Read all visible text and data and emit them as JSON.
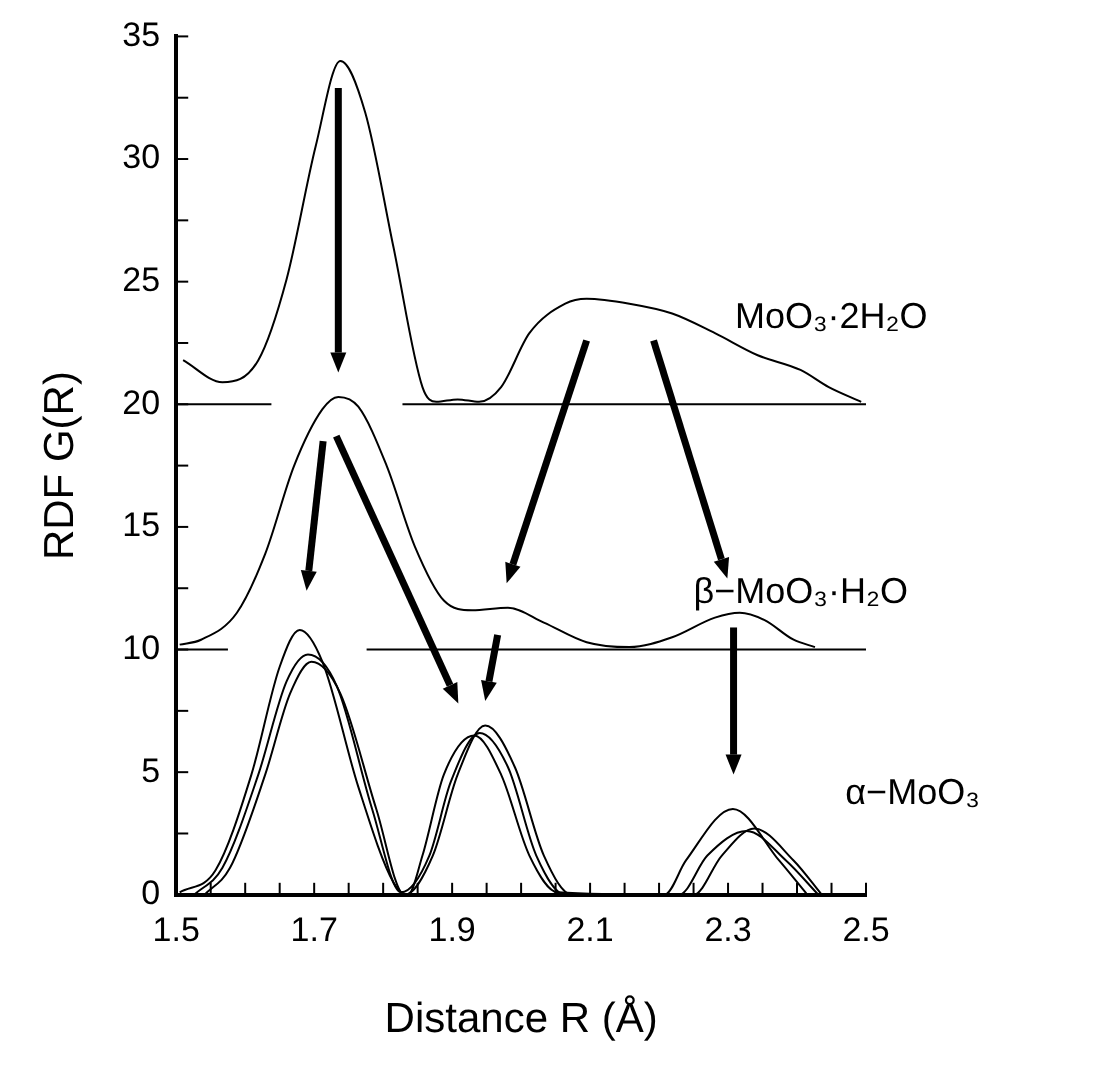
{
  "chart_data": {
    "type": "line",
    "xlabel": "Distance R (Å)",
    "ylabel": "RDF G(R)",
    "xlim": [
      1.5,
      2.5
    ],
    "ylim": [
      0,
      35
    ],
    "xticks": [
      1.5,
      {
        "value": 1.55,
        "label": null
      },
      {
        "value": 1.6,
        "label": null
      },
      {
        "value": 1.65,
        "label": null
      },
      1.7,
      {
        "value": 1.75,
        "label": null
      },
      {
        "value": 1.8,
        "label": null
      },
      {
        "value": 1.85,
        "label": null
      },
      1.9,
      {
        "value": 1.95,
        "label": null
      },
      {
        "value": 2.0,
        "label": null
      },
      {
        "value": 2.05,
        "label": null
      },
      2.1,
      {
        "value": 2.15,
        "label": null
      },
      {
        "value": 2.2,
        "label": null
      },
      {
        "value": 2.25,
        "label": null
      },
      2.3,
      {
        "value": 2.35,
        "label": null
      },
      {
        "value": 2.4,
        "label": null
      },
      {
        "value": 2.45,
        "label": null
      },
      2.5
    ],
    "yticks": [
      0,
      {
        "value": 2.5,
        "label": null
      },
      5,
      {
        "value": 7.5,
        "label": null
      },
      10,
      {
        "value": 12.5,
        "label": null
      },
      15,
      {
        "value": 17.5,
        "label": null
      },
      20,
      {
        "value": 22.5,
        "label": null
      },
      25,
      {
        "value": 27.5,
        "label": null
      },
      30,
      {
        "value": 32.5,
        "label": null
      },
      35
    ],
    "grid": false,
    "legend": false,
    "marker": "none",
    "line_style": "solid",
    "series": [
      {
        "color": "#000000",
        "x": [
          1.51,
          1.567,
          1.619,
          1.66,
          1.702,
          1.738,
          1.774,
          1.815,
          1.857,
          1.877,
          1.908,
          1.939,
          1.971,
          2.012,
          2.064,
          2.095,
          2.157,
          2.219,
          2.281,
          2.343,
          2.405,
          2.446,
          2.493
        ],
        "values": [
          21.8,
          20.9,
          21.8,
          25.1,
          30.5,
          34.0,
          31.9,
          26.4,
          20.7,
          20.1,
          20.2,
          20.1,
          20.7,
          22.9,
          24.1,
          24.3,
          24.1,
          23.7,
          22.9,
          22.0,
          21.4,
          20.7,
          20.1
        ]
      },
      {
        "color": "#000000",
        "x": [
          1.5,
          1.638,
          1.73,
          1.828,
          2.5
        ],
        "values": [
          20,
          20,
          null,
          20,
          20
        ]
      },
      {
        "color": "#000000",
        "x": [
          1.505,
          1.536,
          1.588,
          1.629,
          1.671,
          1.712,
          1.735,
          1.764,
          1.805,
          1.846,
          1.888,
          1.929,
          1.981,
          2.033,
          2.095,
          2.157,
          2.219,
          2.281,
          2.317,
          2.353,
          2.395,
          2.426
        ],
        "values": [
          10.2,
          10.4,
          11.5,
          13.9,
          17.5,
          19.8,
          20.3,
          19.9,
          17.5,
          14.2,
          12.0,
          11.6,
          11.7,
          11.1,
          10.3,
          10.1,
          10.5,
          11.3,
          11.5,
          11.2,
          10.4,
          10.1
        ]
      },
      {
        "color": "#000000",
        "x": [
          1.5,
          1.575,
          1.68,
          1.776,
          2.5
        ],
        "values": [
          10,
          10,
          null,
          10,
          10
        ]
      },
      {
        "color": "#000000",
        "x": [
          1.505,
          1.557,
          1.609,
          1.65,
          1.679,
          1.712,
          1.764,
          1.815,
          1.836,
          1.857,
          1.888,
          1.932,
          1.971,
          2.012,
          2.053,
          2.208,
          2.239,
          2.307,
          2.374,
          2.415
        ],
        "values": [
          0.1,
          1.0,
          4.9,
          9.3,
          10.8,
          9.5,
          4.4,
          0.5,
          0,
          1.6,
          4.9,
          6.5,
          4.9,
          1.6,
          0.1,
          0,
          1.4,
          3.5,
          1.4,
          0
        ]
      },
      {
        "color": "#000000",
        "x": [
          1.526,
          1.567,
          1.619,
          1.66,
          1.691,
          1.733,
          1.784,
          1.826,
          1.867,
          1.898,
          1.94,
          1.981,
          2.022,
          2.064,
          2.229,
          2.27,
          2.327,
          2.384,
          2.431
        ],
        "values": [
          0,
          1.1,
          4.9,
          8.7,
          9.8,
          8.5,
          3.5,
          0.1,
          1.6,
          4.6,
          6.6,
          5.2,
          1.6,
          0,
          0,
          1.6,
          2.6,
          1.4,
          0
        ]
      },
      {
        "color": "#000000",
        "x": [
          1.541,
          1.578,
          1.629,
          1.665,
          1.696,
          1.738,
          1.79,
          1.831,
          1.872,
          1.908,
          1.948,
          1.991,
          2.033,
          2.074,
          2.25,
          2.291,
          2.338,
          2.395,
          2.436
        ],
        "values": [
          0,
          1.1,
          4.9,
          8.2,
          9.5,
          8.2,
          3.5,
          0,
          1.6,
          4.9,
          6.9,
          5.2,
          1.6,
          0,
          0,
          1.6,
          2.7,
          1.4,
          0
        ]
      }
    ],
    "annotations": [
      "MoO₃·2H₂O",
      "β−MoO₃·H₂O",
      "α−MoO₃"
    ]
  }
}
